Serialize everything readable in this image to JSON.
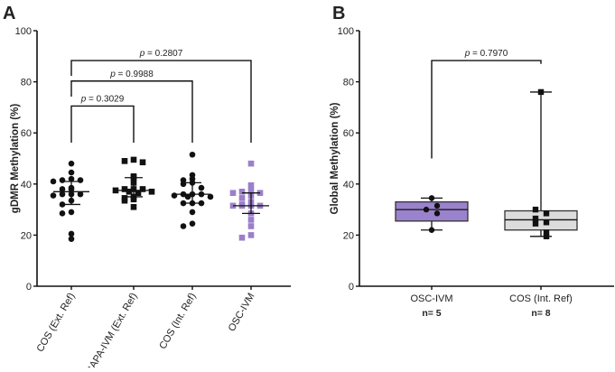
{
  "chart_data": [
    {
      "panel": "A",
      "type": "scatter",
      "ylabel": "gDMR Methylation (%)",
      "ylim": [
        0,
        100
      ],
      "yticks": [
        0,
        20,
        40,
        60,
        80,
        100
      ],
      "categories": [
        "COS (Ext. Ref)",
        "CAPA-IVM (Ext. Ref)",
        "COS (Int. Ref)",
        "OSC-IVM"
      ],
      "series": [
        {
          "name": "COS (Ext. Ref)",
          "marker": "circle",
          "color": "#111111",
          "values": [
            48,
            44.5,
            41.5,
            41,
            42,
            41.5,
            38,
            38,
            38.5,
            36,
            36,
            36,
            35.5,
            33.5,
            32,
            28.5,
            29,
            20.5,
            18.5
          ],
          "median": 37,
          "q1": 32,
          "q3": 41
        },
        {
          "name": "CAPA-IVM (Ext. Ref)",
          "marker": "square",
          "color": "#111111",
          "values": [
            49.5,
            49,
            48.5,
            43,
            42.5,
            40.5,
            38,
            38,
            38,
            37.5,
            37,
            37,
            36.5,
            35,
            34,
            34.5,
            33.5,
            31
          ],
          "median": 37.5,
          "q1": 35,
          "q3": 42.5
        },
        {
          "name": "COS (Int. Ref)",
          "marker": "circle",
          "color": "#111111",
          "values": [
            51.5,
            43.5,
            42,
            41.5,
            40,
            40.5,
            38.5,
            36,
            36,
            36,
            35.5,
            35,
            35,
            32.5,
            32.5,
            32.5,
            29,
            24.5,
            23.5
          ],
          "median": 36,
          "q1": 32.5,
          "q3": 40.5
        },
        {
          "name": "OSC-IVM",
          "marker": "square",
          "color": "#9b7fcb",
          "values": [
            48,
            39.5,
            37.5,
            37,
            36.5,
            36.5,
            35.5,
            34.5,
            33,
            32,
            31.5,
            31.5,
            31.5,
            31.5,
            28.5,
            26,
            23.5,
            20,
            19
          ],
          "median": 31.5,
          "q1": 28.5,
          "q3": 36.5
        }
      ],
      "comparisons": [
        {
          "from": 0,
          "to": 1,
          "label": "p = 0.3029",
          "p_prefix": "p",
          "p_value": "=  0.3029",
          "y": 70.5
        },
        {
          "from": 0,
          "to": 2,
          "label": "p = 0.9988",
          "p_prefix": "p",
          "p_value": "=  0.9988",
          "y": 80.3
        },
        {
          "from": 0,
          "to": 3,
          "label": "p = 0.2807",
          "p_prefix": "p",
          "p_value": "=  0.2807",
          "y": 88.3
        }
      ]
    },
    {
      "panel": "B",
      "type": "box",
      "ylabel": "Global Methylation (%)",
      "ylim": [
        0,
        100
      ],
      "yticks": [
        0,
        20,
        40,
        60,
        80,
        100
      ],
      "categories": [
        "OSC-IVM",
        "COS (Int. Ref)"
      ],
      "n_labels": [
        "n= 5",
        "n= 8"
      ],
      "series": [
        {
          "name": "OSC-IVM",
          "marker": "circle",
          "fill": "#9b82cc",
          "values": [
            34.5,
            31.5,
            30,
            28.5,
            22
          ],
          "min": 22,
          "q1": 25.5,
          "median": 30,
          "q3": 33,
          "max": 34.5
        },
        {
          "name": "COS (Int. Ref)",
          "marker": "square",
          "fill": "#dcdcdc",
          "values": [
            76,
            30,
            28.5,
            26.5,
            25,
            24.5,
            21,
            19.5
          ],
          "min": 19.5,
          "q1": 22,
          "median": 26,
          "q3": 29.5,
          "max": 76
        }
      ],
      "comparisons": [
        {
          "from": 0,
          "to": 1,
          "label": "p = 0.7970",
          "p_prefix": "p",
          "p_value": "=  0.7970",
          "y": 88.3
        }
      ]
    }
  ]
}
